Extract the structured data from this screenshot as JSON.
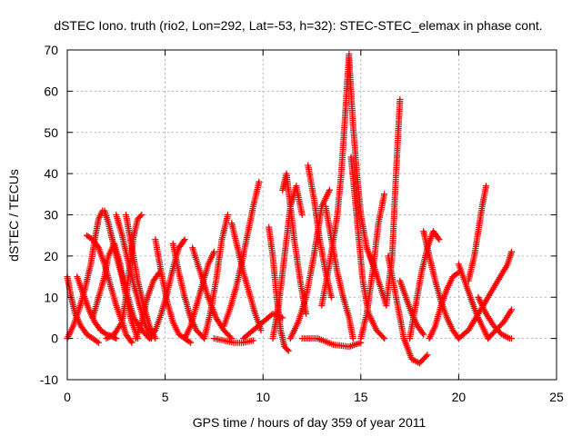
{
  "chart_data": {
    "type": "scatter",
    "title": "dSTEC Iono. truth (rio2, Lon=292, Lat=-53, h=32): STEC-STEC_elemax in phase cont.",
    "xlabel": "GPS time / hours of day 359 of year 2011",
    "ylabel": "dSTEC  / TECUs",
    "xlim": [
      0,
      25
    ],
    "ylim": [
      -10,
      70
    ],
    "xticks": [
      "0",
      "5",
      "10",
      "15",
      "20",
      "25"
    ],
    "yticks": [
      "-10",
      "0",
      "10",
      "20",
      "30",
      "40",
      "50",
      "60",
      "70"
    ],
    "grid": true,
    "marker": "plus",
    "color": "#ff0000",
    "series": [
      {
        "x": [
          0.0,
          0.2,
          0.4,
          0.7,
          1.0,
          1.3,
          1.6
        ],
        "y": [
          15.0,
          10.0,
          6.0,
          3.0,
          1.0,
          0.0,
          -1.0
        ]
      },
      {
        "x": [
          0.0,
          0.3,
          0.6,
          0.9,
          1.2,
          1.4,
          1.6,
          1.8
        ],
        "y": [
          0.0,
          3.0,
          7.0,
          12.0,
          18.0,
          24.0,
          29.0,
          31.0
        ]
      },
      {
        "x": [
          0.5,
          0.8,
          1.1,
          1.4,
          1.7,
          2.0,
          2.3,
          2.5
        ],
        "y": [
          15.0,
          11.0,
          7.0,
          4.0,
          2.0,
          1.0,
          0.5,
          0.0
        ]
      },
      {
        "x": [
          1.0,
          1.3,
          1.6,
          1.9,
          2.2,
          2.5,
          2.8,
          3.0,
          3.3
        ],
        "y": [
          25.0,
          24.0,
          22.0,
          18.0,
          13.0,
          8.0,
          4.0,
          1.0,
          -1.0
        ]
      },
      {
        "x": [
          1.3,
          1.6,
          1.9,
          2.1,
          2.4,
          2.7,
          3.0,
          3.3,
          3.6
        ],
        "y": [
          5.0,
          10.0,
          15.0,
          20.0,
          23.0,
          18.0,
          10.0,
          4.0,
          0.0
        ]
      },
      {
        "x": [
          1.9,
          2.1,
          2.3,
          2.5,
          2.8,
          3.1,
          3.4,
          3.8,
          4.2
        ],
        "y": [
          31.0,
          28.0,
          24.0,
          20.0,
          15.0,
          10.0,
          5.0,
          2.0,
          0.0
        ]
      },
      {
        "x": [
          2.5,
          2.8,
          3.1,
          3.4,
          3.7,
          4.0,
          4.3
        ],
        "y": [
          30.0,
          25.0,
          19.0,
          13.0,
          8.0,
          3.0,
          0.0
        ]
      },
      {
        "x": [
          2.0,
          2.4,
          2.8,
          3.0,
          3.2,
          3.4,
          3.6,
          3.8
        ],
        "y": [
          0.0,
          1.0,
          4.0,
          10.0,
          18.0,
          25.0,
          29.0,
          30.0
        ]
      },
      {
        "x": [
          3.0,
          3.3,
          3.6,
          3.9,
          4.2,
          4.5
        ],
        "y": [
          30.0,
          22.0,
          14.0,
          8.0,
          3.0,
          0.0
        ]
      },
      {
        "x": [
          3.5,
          3.8,
          4.1,
          4.4,
          4.7
        ],
        "y": [
          0.0,
          4.0,
          10.0,
          14.0,
          16.0
        ]
      },
      {
        "x": [
          4.5,
          4.8,
          5.1,
          5.4,
          5.7,
          6.0,
          6.3
        ],
        "y": [
          24.0,
          16.0,
          9.0,
          4.0,
          1.0,
          0.0,
          -1.0
        ]
      },
      {
        "x": [
          4.2,
          4.5,
          4.8,
          5.1,
          5.4,
          5.7,
          6.0
        ],
        "y": [
          0.0,
          2.0,
          6.0,
          11.0,
          17.0,
          22.0,
          24.0
        ]
      },
      {
        "x": [
          5.4,
          5.7,
          6.0,
          6.3,
          6.6,
          7.0
        ],
        "y": [
          23.0,
          16.0,
          10.0,
          5.0,
          2.0,
          0.0
        ]
      },
      {
        "x": [
          6.0,
          6.3,
          6.6,
          6.9,
          7.2,
          7.5
        ],
        "y": [
          0.0,
          3.0,
          8.0,
          13.0,
          18.0,
          21.0
        ]
      },
      {
        "x": [
          6.4,
          6.8,
          7.2,
          7.6,
          8.0,
          8.4
        ],
        "y": [
          22.0,
          16.0,
          10.0,
          5.0,
          2.0,
          0.0
        ]
      },
      {
        "x": [
          7.0,
          7.3,
          7.6,
          7.9,
          8.2
        ],
        "y": [
          0.0,
          6.0,
          14.0,
          24.0,
          30.0
        ]
      },
      {
        "x": [
          7.5,
          8.0,
          8.5,
          9.0,
          9.5
        ],
        "y": [
          0.0,
          -0.5,
          -1.0,
          -1.0,
          -0.5
        ]
      },
      {
        "x": [
          8.0,
          8.3,
          8.6,
          8.9,
          9.2,
          9.5,
          9.8
        ],
        "y": [
          3.0,
          7.0,
          12.0,
          18.0,
          25.0,
          32.0,
          38.0
        ]
      },
      {
        "x": [
          8.4,
          8.7,
          9.0,
          9.3,
          9.6,
          9.9
        ],
        "y": [
          28.0,
          22.0,
          16.0,
          11.0,
          6.0,
          2.0
        ]
      },
      {
        "x": [
          9.0,
          9.5,
          10.0,
          10.5,
          11.0
        ],
        "y": [
          0.0,
          2.0,
          4.0,
          6.0,
          5.0
        ]
      },
      {
        "x": [
          10.3,
          10.5,
          10.7,
          10.9,
          11.1,
          11.3
        ],
        "y": [
          27.0,
          20.0,
          10.0,
          2.0,
          -2.0,
          -3.0
        ]
      },
      {
        "x": [
          10.5,
          10.8,
          11.1,
          11.4,
          11.7,
          12.0
        ],
        "y": [
          0.0,
          8.0,
          20.0,
          32.0,
          37.0,
          30.0
        ]
      },
      {
        "x": [
          11.0,
          11.2,
          11.4,
          11.6,
          11.9,
          12.2
        ],
        "y": [
          36.0,
          40.0,
          32.0,
          24.0,
          14.0,
          6.0
        ]
      },
      {
        "x": [
          11.4,
          11.8,
          12.2,
          12.6,
          13.0,
          13.4
        ],
        "y": [
          0.0,
          4.0,
          10.0,
          20.0,
          32.0,
          36.0
        ]
      },
      {
        "x": [
          12.3,
          12.6,
          12.9,
          13.2,
          13.5
        ],
        "y": [
          42.0,
          34.0,
          24.0,
          16.0,
          10.0
        ]
      },
      {
        "x": [
          13.2,
          13.5,
          13.8,
          14.1,
          14.4,
          14.6
        ],
        "y": [
          32.0,
          24.0,
          16.0,
          10.0,
          5.0,
          0.0
        ]
      },
      {
        "x": [
          12.0,
          12.8,
          13.6,
          14.4,
          15.0
        ],
        "y": [
          0.0,
          0.0,
          -1.5,
          -2.0,
          -1.0
        ]
      },
      {
        "x": [
          13.0,
          13.4,
          13.8,
          14.0,
          14.2,
          14.3,
          14.4
        ],
        "y": [
          8.0,
          18.0,
          30.0,
          40.0,
          54.0,
          62.0,
          69.0
        ]
      },
      {
        "x": [
          14.4,
          14.6,
          14.8,
          15.0,
          15.3,
          15.6
        ],
        "y": [
          68.0,
          52.0,
          40.0,
          30.0,
          22.0,
          18.0
        ]
      },
      {
        "x": [
          14.5,
          14.7,
          14.9,
          15.1,
          15.4,
          15.8,
          16.2
        ],
        "y": [
          44.0,
          34.0,
          24.0,
          14.0,
          6.0,
          2.0,
          0.0
        ]
      },
      {
        "x": [
          15.0,
          15.3,
          15.6,
          15.9,
          16.2
        ],
        "y": [
          0.0,
          6.0,
          16.0,
          28.0,
          35.0
        ]
      },
      {
        "x": [
          15.5,
          15.9,
          16.3,
          16.6,
          16.8,
          17.0
        ],
        "y": [
          20.0,
          14.0,
          8.0,
          20.0,
          40.0,
          58.0
        ]
      },
      {
        "x": [
          16.4,
          16.8,
          17.2,
          17.6,
          18.0,
          18.4
        ],
        "y": [
          20.0,
          10.0,
          0.0,
          -5.0,
          -6.0,
          -4.0
        ]
      },
      {
        "x": [
          17.0,
          17.3,
          17.6,
          17.9,
          18.2
        ],
        "y": [
          14.0,
          10.0,
          6.0,
          3.0,
          1.0
        ]
      },
      {
        "x": [
          17.5,
          17.8,
          18.1,
          18.4,
          18.7,
          19.0
        ],
        "y": [
          0.0,
          8.0,
          16.0,
          22.0,
          26.0,
          24.0
        ]
      },
      {
        "x": [
          18.2,
          18.5,
          18.8,
          19.1,
          19.4,
          19.7,
          20.0
        ],
        "y": [
          26.0,
          20.0,
          14.0,
          9.0,
          5.0,
          2.0,
          0.0
        ]
      },
      {
        "x": [
          18.5,
          18.8,
          19.1,
          19.4,
          19.7,
          20.0
        ],
        "y": [
          0.0,
          3.0,
          8.0,
          12.0,
          15.0,
          16.0
        ]
      },
      {
        "x": [
          20.0,
          20.3,
          20.6,
          20.9,
          21.2,
          21.5
        ],
        "y": [
          18.0,
          14.0,
          10.0,
          6.0,
          3.0,
          0.0
        ]
      },
      {
        "x": [
          20.5,
          20.8,
          21.0,
          21.2,
          21.4
        ],
        "y": [
          14.0,
          20.0,
          26.0,
          32.0,
          37.0
        ]
      },
      {
        "x": [
          20.0,
          20.5,
          21.0,
          21.5,
          22.0,
          22.5,
          22.7
        ],
        "y": [
          0.0,
          2.0,
          6.0,
          10.0,
          14.0,
          18.0,
          21.0
        ]
      },
      {
        "x": [
          21.0,
          21.4,
          21.8,
          22.2,
          22.6,
          22.7
        ],
        "y": [
          10.0,
          6.0,
          3.0,
          1.0,
          0.0,
          0.0
        ]
      },
      {
        "x": [
          21.5,
          21.9,
          22.3,
          22.7
        ],
        "y": [
          0.0,
          2.0,
          4.0,
          7.0
        ]
      }
    ]
  }
}
